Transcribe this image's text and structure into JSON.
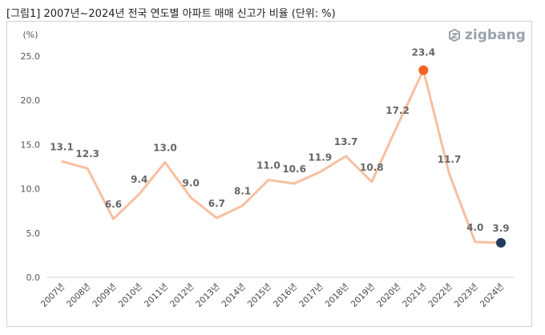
{
  "title": "[그림1] 2007년~2024년 전국 연도별 아파트 매매 신고가 비율 (단위: %)",
  "logo_text": "zigbang",
  "logo_icon": "zigbang-logo-icon",
  "chart_data": {
    "type": "line",
    "title": "",
    "ylabel": "(%)",
    "xlabel": "",
    "categories": [
      "2007년",
      "2008년",
      "2009년",
      "2010년",
      "2011년",
      "2012년",
      "2013년",
      "2014년",
      "2015년",
      "2016년",
      "2017년",
      "2018년",
      "2019년",
      "2020년",
      "2021년",
      "2022년",
      "2023년",
      "2024년"
    ],
    "series": [
      {
        "values": [
          13.1,
          12.3,
          6.6,
          9.4,
          13.0,
          9.0,
          6.7,
          8.1,
          11.0,
          10.6,
          11.9,
          13.7,
          10.8,
          17.2,
          23.4,
          11.7,
          4.0,
          3.9
        ]
      }
    ],
    "data_labels": [
      "13.1",
      "12.3",
      "6.6",
      "9.4",
      "13.0",
      "9.0",
      "6.7",
      "8.1",
      "11.0",
      "10.6",
      "11.9",
      "13.7",
      "10.8",
      "17.2",
      "23.4",
      "11.7",
      "4.0",
      "3.9"
    ],
    "yticks": [
      "0.0",
      "5.0",
      "10.0",
      "15.0",
      "20.0",
      "25.0"
    ],
    "ylim": [
      0,
      25
    ],
    "grid": false,
    "legend": "none",
    "highlights": [
      {
        "index": 14,
        "color": "#f26522"
      },
      {
        "index": 17,
        "color": "#233a5e"
      }
    ],
    "colors": {
      "line": "#f7bfa0",
      "axis": "#d9d9d9",
      "label": "#666666"
    }
  }
}
